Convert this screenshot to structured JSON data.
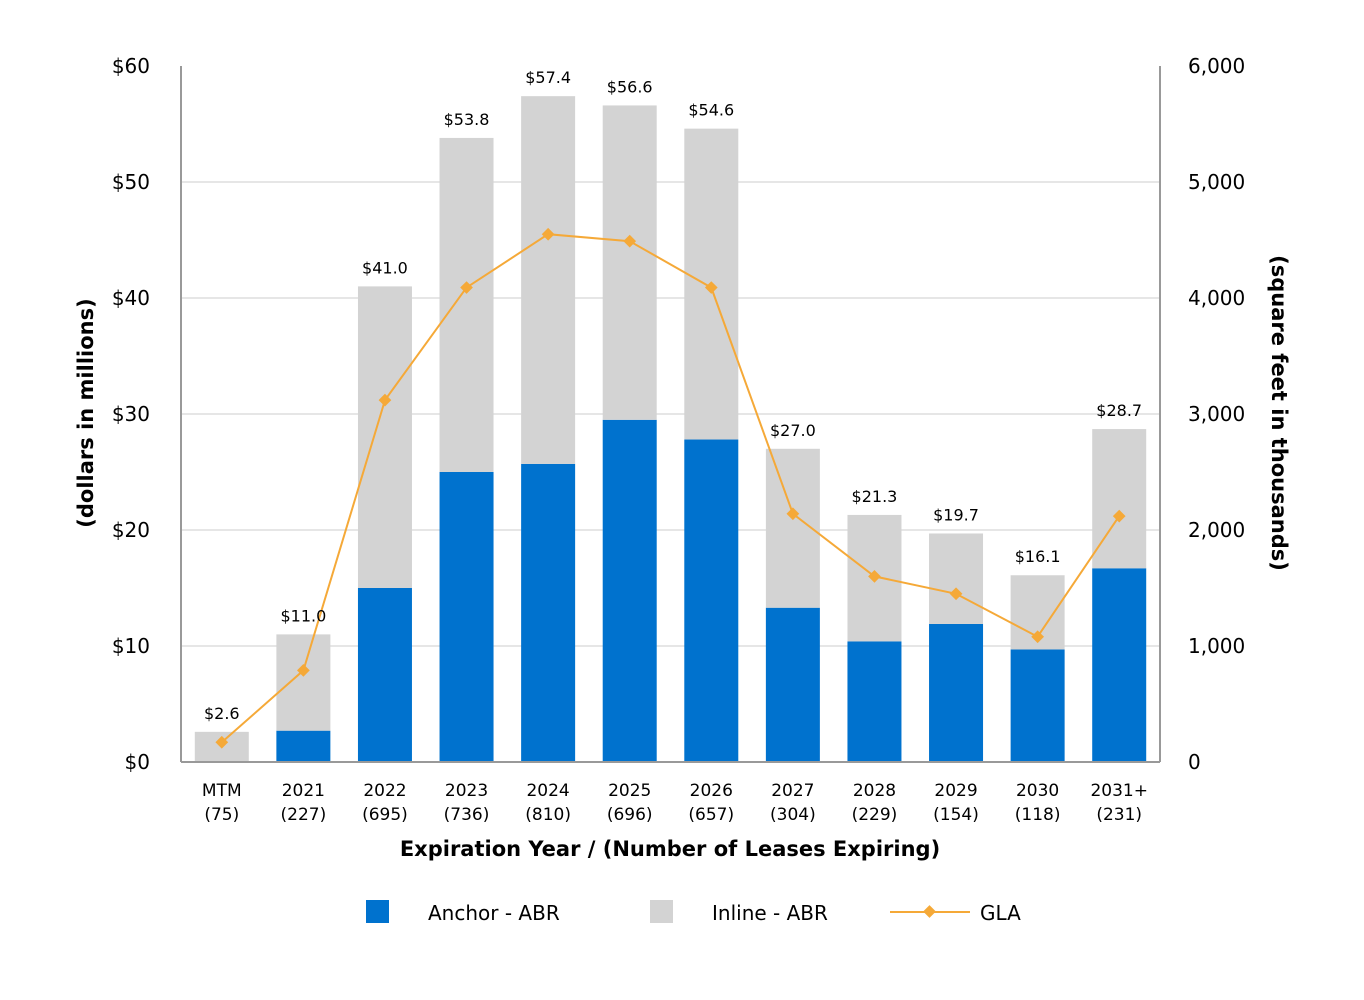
{
  "chart_data": {
    "type": "bar",
    "stacked": true,
    "categories": [
      {
        "year": "MTM",
        "leases": "(75)"
      },
      {
        "year": "2021",
        "leases": "(227)"
      },
      {
        "year": "2022",
        "leases": "(695)"
      },
      {
        "year": "2023",
        "leases": "(736)"
      },
      {
        "year": "2024",
        "leases": "(810)"
      },
      {
        "year": "2025",
        "leases": "(696)"
      },
      {
        "year": "2026",
        "leases": "(657)"
      },
      {
        "year": "2027",
        "leases": "(304)"
      },
      {
        "year": "2028",
        "leases": "(229)"
      },
      {
        "year": "2029",
        "leases": "(154)"
      },
      {
        "year": "2030",
        "leases": "(118)"
      },
      {
        "year": "2031+",
        "leases": "(231)"
      }
    ],
    "series": [
      {
        "name": "Anchor - ABR",
        "axis": "left",
        "kind": "bar",
        "color": "#0072CE",
        "values": [
          0.0,
          2.7,
          15.0,
          25.0,
          25.7,
          29.5,
          27.8,
          13.3,
          10.4,
          11.9,
          9.7,
          16.7
        ]
      },
      {
        "name": "Inline - ABR",
        "axis": "left",
        "kind": "bar",
        "color": "#D3D3D3",
        "values": [
          2.6,
          8.3,
          26.0,
          28.8,
          31.7,
          27.1,
          26.8,
          13.7,
          10.9,
          7.8,
          6.4,
          12.0
        ]
      },
      {
        "name": "GLA",
        "axis": "right",
        "kind": "line",
        "color": "#F5A938",
        "values": [
          170,
          790,
          3120,
          4090,
          4550,
          4490,
          4090,
          2140,
          1600,
          1450,
          1080,
          2120
        ]
      }
    ],
    "total_labels": [
      "$2.6",
      "$11.0",
      "$41.0",
      "$53.8",
      "$57.4",
      "$56.6",
      "$54.6",
      "$27.0",
      "$21.3",
      "$19.7",
      "$16.1",
      "$28.7"
    ],
    "totals": [
      2.6,
      11.0,
      41.0,
      53.8,
      57.4,
      56.6,
      54.6,
      27.0,
      21.3,
      19.7,
      16.1,
      28.7
    ],
    "left_axis": {
      "title": "(dollars in millions)",
      "min": 0,
      "max": 60,
      "ticks": [
        "$0",
        "$10",
        "$20",
        "$30",
        "$40",
        "$50",
        "$60"
      ]
    },
    "right_axis": {
      "title": "(square feet in thousands)",
      "min": 0,
      "max": 6000,
      "ticks": [
        "0",
        "1,000",
        "2,000",
        "3,000",
        "4,000",
        "5,000",
        "6,000"
      ]
    },
    "xlabel": "Expiration Year / (Number of Leases Expiring)",
    "grid": true,
    "legend_position": "bottom"
  }
}
